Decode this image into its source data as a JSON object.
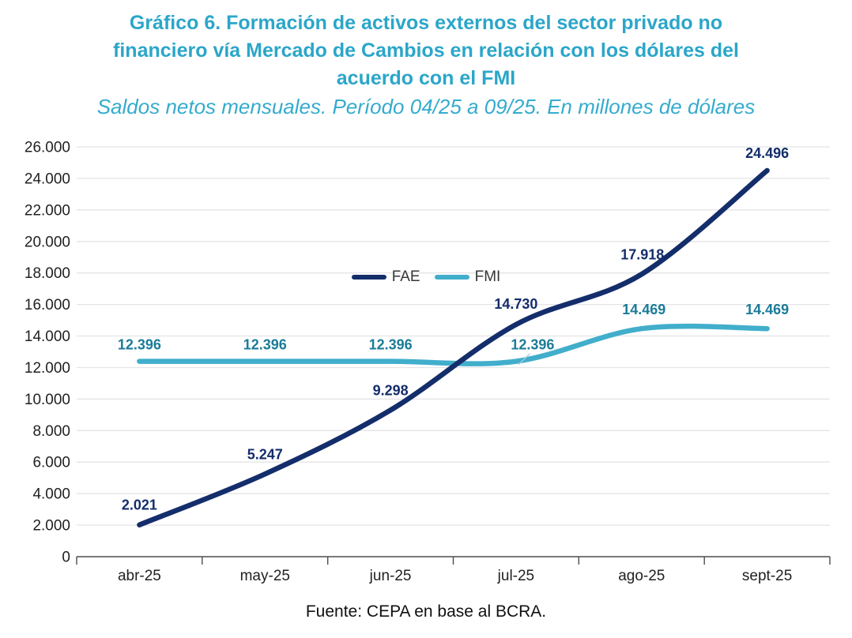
{
  "title": {
    "lines": [
      "Gráfico 6. Formación de activos externos del sector privado no",
      "financiero vía Mercado de Cambios en relación con los dólares del",
      "acuerdo con el FMI"
    ]
  },
  "subtitle": "Saldos netos mensuales. Período 04/25 a 09/25. En millones de dólares",
  "source": "Fuente: CEPA en base al BCRA.",
  "colors": {
    "title_accent": "#2ba6c9",
    "fae_line": "#142d6b",
    "fmi_line": "#41aecb",
    "fmi_label": "#1b7b98",
    "gridline": "#e4e4e7",
    "axis": "#4d4d4d",
    "axis_text": "#212121",
    "leader_line": "#a9cedb"
  },
  "chart_data": {
    "type": "line",
    "categories": [
      "abr-25",
      "may-25",
      "jun-25",
      "jul-25",
      "ago-25",
      "sept-25"
    ],
    "series": [
      {
        "name": "FAE",
        "color": "#142d6b",
        "label_color": "#142d6b",
        "values": [
          2021,
          5247,
          9298,
          14730,
          17918,
          24496
        ],
        "data_labels": [
          "2.021",
          "5.247",
          "9.298",
          "14.730",
          "17.918",
          "24.496"
        ]
      },
      {
        "name": "FMI",
        "color": "#41aecb",
        "label_color": "#1b7b98",
        "values": [
          12396,
          12396,
          12396,
          12396,
          14469,
          14469
        ],
        "data_labels": [
          "12.396",
          "12.396",
          "12.396",
          "12.396",
          "14.469",
          "14.469"
        ]
      }
    ],
    "ylim": [
      0,
      26000
    ],
    "ytick_step": 2000,
    "ytick_labels": [
      "0",
      "2.000",
      "4.000",
      "6.000",
      "8.000",
      "10.000",
      "12.000",
      "14.000",
      "16.000",
      "18.000",
      "20.000",
      "22.000",
      "24.000",
      "26.000"
    ],
    "grid": true,
    "legend_position": "top-center",
    "smoothed_lines": true
  },
  "legend": {
    "items": [
      {
        "label": "FAE"
      },
      {
        "label": "FMI"
      }
    ]
  }
}
